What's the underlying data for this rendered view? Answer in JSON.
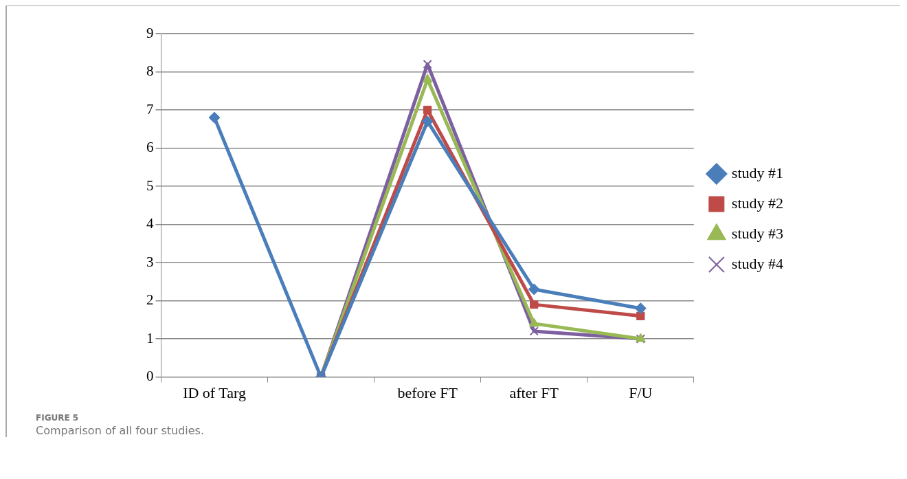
{
  "chart_data": {
    "type": "line",
    "categories": [
      "ID of Targ",
      null,
      "before FT",
      "after FT",
      "F/U"
    ],
    "series": [
      {
        "name": "study #1",
        "color": "#4a7ebb",
        "marker": "diamond",
        "values": [
          6.8,
          0,
          6.7,
          2.3,
          1.8
        ]
      },
      {
        "name": "study #2",
        "color": "#be4b48",
        "marker": "square",
        "values": [
          null,
          0,
          7.0,
          1.9,
          1.6
        ]
      },
      {
        "name": "study #3",
        "color": "#98b954",
        "marker": "triangle",
        "values": [
          null,
          0,
          7.8,
          1.4,
          1.0
        ]
      },
      {
        "name": "study #4",
        "color": "#7d60a0",
        "marker": "cross",
        "values": [
          null,
          0,
          8.2,
          1.2,
          1.0
        ]
      }
    ],
    "ylim": [
      0,
      9
    ],
    "yticks": [
      0,
      1,
      2,
      3,
      4,
      5,
      6,
      7,
      8,
      9
    ],
    "grid": "y",
    "legend": "right",
    "line_style": "solid",
    "annotations": [
      "FIGURE 5",
      "Comparison of all four studies."
    ]
  }
}
